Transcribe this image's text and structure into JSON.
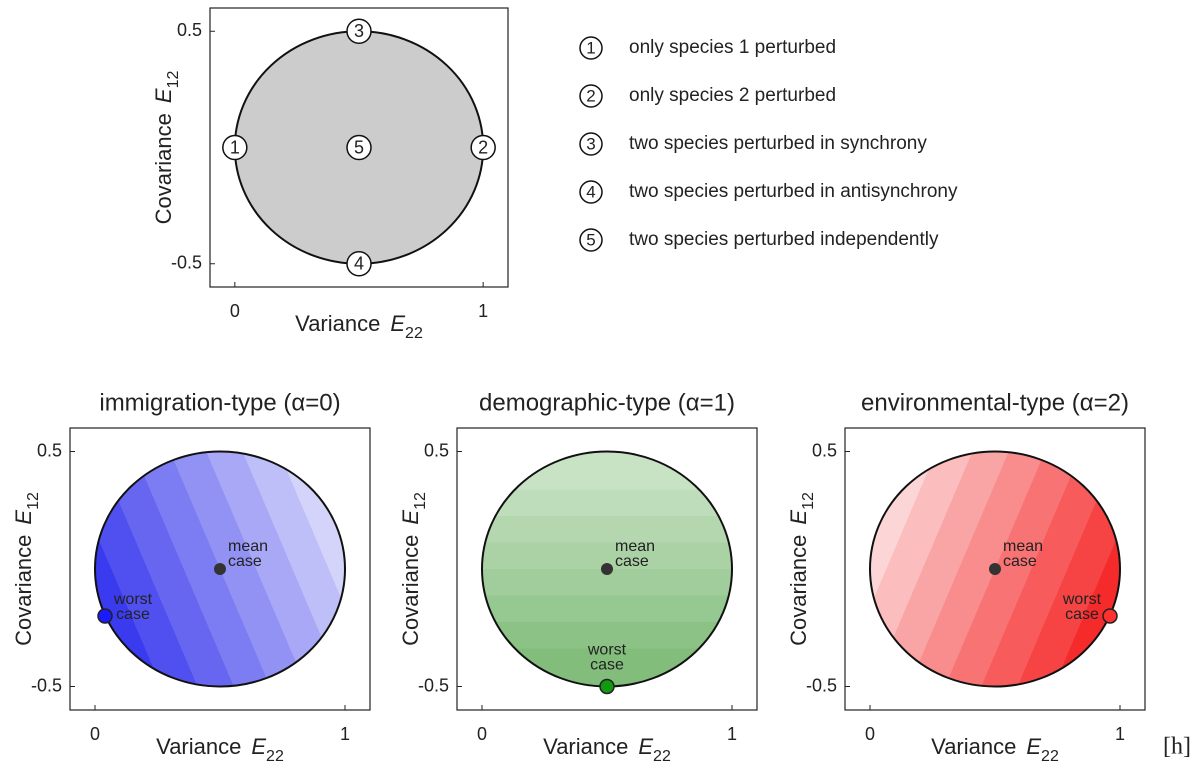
{
  "chart_data": [
    {
      "type": "scatter",
      "xlabel": "Variance",
      "x_symbol": "E",
      "x_subscript": "22",
      "ylabel": "Covariance",
      "y_symbol": "E",
      "y_subscript": "12",
      "xlim": [
        -0.1,
        1.1
      ],
      "ylim": [
        -0.6,
        0.6
      ],
      "xticks": [
        0,
        1
      ],
      "yticks": [
        -0.5,
        0.5
      ],
      "region": {
        "center": [
          0.5,
          0
        ],
        "radius": 0.5,
        "color": "#cccccc"
      },
      "points": {
        "x": [
          0,
          1,
          0.5,
          0.5,
          0.5
        ],
        "y": [
          0,
          0,
          0.5,
          -0.5,
          0
        ],
        "labels": [
          "1",
          "2",
          "3",
          "4",
          "5"
        ]
      },
      "legend": [
        {
          "symbol": "1",
          "text": "only species 1 perturbed"
        },
        {
          "symbol": "2",
          "text": "only species 2 perturbed"
        },
        {
          "symbol": "3",
          "text": "two species perturbed in synchrony"
        },
        {
          "symbol": "4",
          "text": "two species perturbed in antisynchrony"
        },
        {
          "symbol": "5",
          "text": "two species perturbed independently"
        }
      ]
    },
    {
      "type": "scatter",
      "title": "immigration-type (α=0)",
      "title_color": "#0000ff",
      "xlabel": "Variance",
      "x_symbol": "E",
      "x_subscript": "22",
      "ylabel": "Covariance",
      "y_symbol": "E",
      "y_subscript": "12",
      "xlim": [
        -0.1,
        1.1
      ],
      "ylim": [
        -0.6,
        0.6
      ],
      "xticks": [
        0,
        1
      ],
      "yticks": [
        -0.5,
        0.5
      ],
      "region": {
        "center": [
          0.5,
          0
        ],
        "radius": 0.5,
        "shade": [
          "#3a3aee",
          "#d4d4fa"
        ]
      },
      "points": {
        "x": [
          0.5,
          0.04
        ],
        "y": [
          0,
          -0.2
        ],
        "labels": [
          [
            "mean",
            "case"
          ],
          [
            "worst",
            "case"
          ]
        ],
        "colors": [
          "#333333",
          "#1a1aff"
        ],
        "label_colors": [
          "#333333",
          "#ffffff"
        ],
        "label_positions": [
          "right",
          "above-right"
        ]
      }
    },
    {
      "type": "scatter",
      "title": "demographic-type (α=1)",
      "title_color": "#008000",
      "xlabel": "Variance",
      "x_symbol": "E",
      "x_subscript": "22",
      "ylabel": "Covariance",
      "y_symbol": "E",
      "y_subscript": "12",
      "xlim": [
        -0.1,
        1.1
      ],
      "ylim": [
        -0.6,
        0.6
      ],
      "xticks": [
        0,
        1
      ],
      "yticks": [
        -0.5,
        0.5
      ],
      "region": {
        "center": [
          0.5,
          0
        ],
        "radius": 0.5,
        "shade": [
          "#c8e2c4",
          "#82bd7c"
        ]
      },
      "points": {
        "x": [
          0.5,
          0.5
        ],
        "y": [
          0,
          -0.5
        ],
        "labels": [
          [
            "mean",
            "case"
          ],
          [
            "worst",
            "case"
          ]
        ],
        "colors": [
          "#333333",
          "#119911"
        ],
        "label_colors": [
          "#333333",
          "#ffffff"
        ],
        "label_positions": [
          "right",
          "above"
        ]
      }
    },
    {
      "type": "scatter",
      "title": "environmental-type (α=2)",
      "title_color": "#ff0000",
      "xlabel": "Variance",
      "x_symbol": "E",
      "x_subscript": "22",
      "ylabel": "Covariance",
      "y_symbol": "E",
      "y_subscript": "12",
      "xlim": [
        -0.1,
        1.1
      ],
      "ylim": [
        -0.6,
        0.6
      ],
      "xticks": [
        0,
        1
      ],
      "yticks": [
        -0.5,
        0.5
      ],
      "region": {
        "center": [
          0.5,
          0
        ],
        "radius": 0.5,
        "shade": [
          "#fcd6d6",
          "#f52a2a"
        ]
      },
      "points": {
        "x": [
          0.5,
          0.96
        ],
        "y": [
          0,
          -0.2
        ],
        "labels": [
          [
            "mean",
            "case"
          ],
          [
            "worst",
            "case"
          ]
        ],
        "colors": [
          "#333333",
          "#ff3030"
        ],
        "label_colors": [
          "#333333",
          "#ffffff"
        ],
        "label_positions": [
          "right",
          "above-left"
        ]
      }
    }
  ],
  "panel_label": "[h]"
}
